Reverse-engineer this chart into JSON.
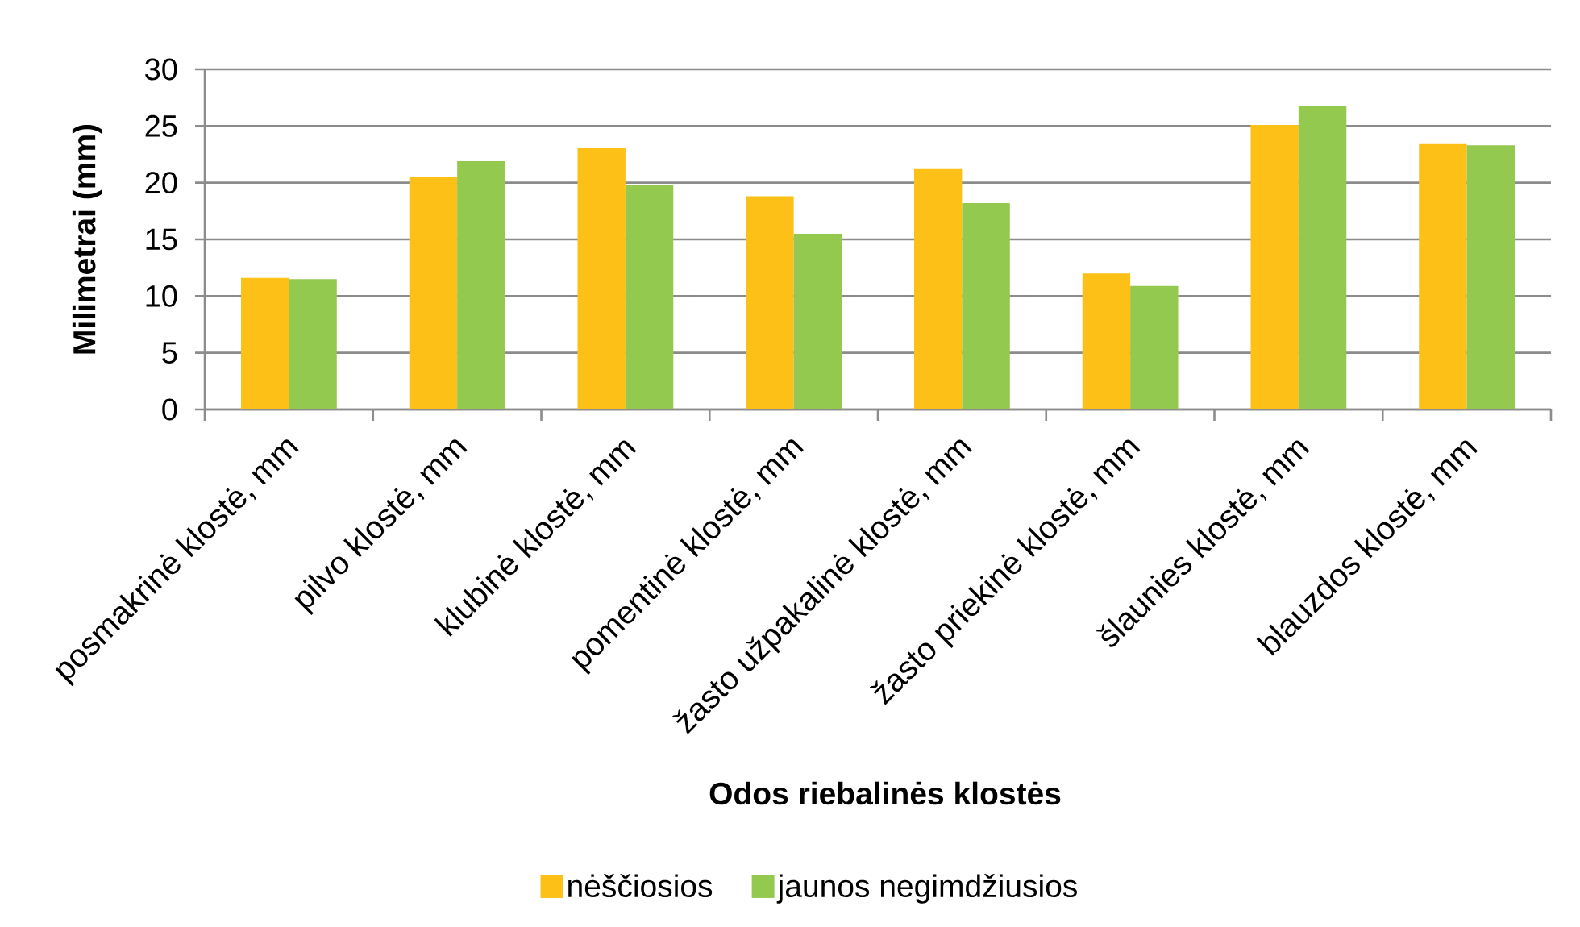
{
  "chart_data": {
    "type": "bar",
    "xlabel": "Odos riebalinės klostės",
    "ylabel": "Milimetrai (mm)",
    "categories": [
      "posmakrinė klostė, mm",
      "pilvo klostė, mm",
      "klubinė klostė, mm",
      "pomentinė klostė, mm",
      "žasto užpakalinė klostė, mm",
      "žasto priekinė klostė, mm",
      "šlaunies klostė, mm",
      "blauzdos klostė, mm"
    ],
    "series": [
      {
        "name": "nėščiosios",
        "color": "#fdc016",
        "values": [
          11.6,
          20.5,
          23.1,
          18.8,
          21.2,
          12.0,
          25.1,
          23.4
        ]
      },
      {
        "name": "jaunos negimdžiusios",
        "color": "#94c950",
        "values": [
          11.5,
          21.9,
          19.8,
          15.5,
          18.2,
          10.9,
          26.8,
          23.3
        ]
      }
    ],
    "ylim": [
      0,
      30
    ],
    "yticks": [
      0,
      5,
      10,
      15,
      20,
      25,
      30
    ],
    "grid": "y",
    "legend": "bottom"
  }
}
